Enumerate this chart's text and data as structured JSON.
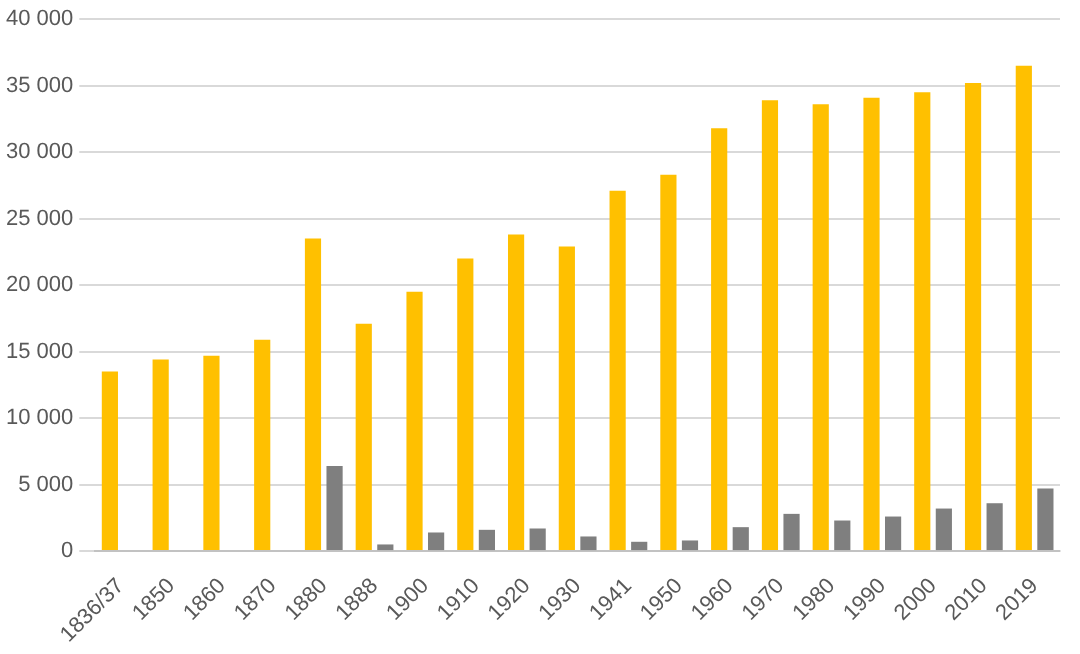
{
  "chart_data": {
    "type": "bar",
    "categories": [
      "1836/37",
      "1850",
      "1860",
      "1870",
      "1880",
      "1888",
      "1900",
      "1910",
      "1920",
      "1930",
      "1941",
      "1950",
      "1960",
      "1970",
      "1980",
      "1990",
      "2000",
      "2010",
      "2019"
    ],
    "series": [
      {
        "color": "#ffc000",
        "values": [
          13500,
          14400,
          14700,
          15900,
          23500,
          17100,
          19500,
          22000,
          23800,
          22900,
          27100,
          28300,
          31800,
          33900,
          33600,
          34100,
          34500,
          35200,
          36500
        ]
      },
      {
        "color": "#7f7f7f",
        "values": [
          0,
          0,
          0,
          0,
          6400,
          500,
          1400,
          1600,
          1700,
          1100,
          700,
          800,
          1800,
          2800,
          2300,
          2600,
          3200,
          3600,
          4700
        ]
      }
    ],
    "ylim": [
      0,
      40000
    ],
    "yticks": [
      {
        "value": 0,
        "label": "0"
      },
      {
        "value": 5000,
        "label": "5 000"
      },
      {
        "value": 10000,
        "label": "10 000"
      },
      {
        "value": 15000,
        "label": "15 000"
      },
      {
        "value": 20000,
        "label": "20 000"
      },
      {
        "value": 25000,
        "label": "25 000"
      },
      {
        "value": 30000,
        "label": "30 000"
      },
      {
        "value": 35000,
        "label": "35 000"
      },
      {
        "value": 40000,
        "label": "40 000"
      }
    ],
    "grid": "y",
    "legend": false
  }
}
